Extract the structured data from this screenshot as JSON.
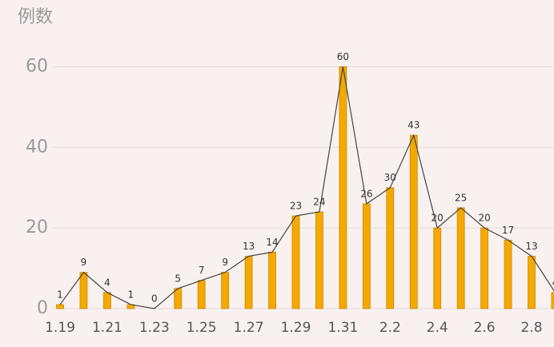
{
  "chart_data": {
    "type": "bar",
    "title": "例数",
    "categories": [
      "1.19",
      null,
      "1.21",
      null,
      "1.23",
      null,
      "1.25",
      null,
      "1.27",
      null,
      "1.29",
      null,
      "1.31",
      null,
      "2.2",
      null,
      "2.4",
      null,
      "2.6",
      null,
      "2.8",
      null
    ],
    "values": [
      1,
      9,
      4,
      1,
      0,
      5,
      7,
      9,
      13,
      14,
      23,
      24,
      60,
      26,
      30,
      43,
      20,
      25,
      20,
      17,
      13,
      4
    ],
    "color": "#f5a800",
    "line": true,
    "line_color": "#444444",
    "ylim": [
      0,
      70
    ],
    "yticks": [
      0,
      20,
      40,
      60
    ],
    "grid": true
  }
}
